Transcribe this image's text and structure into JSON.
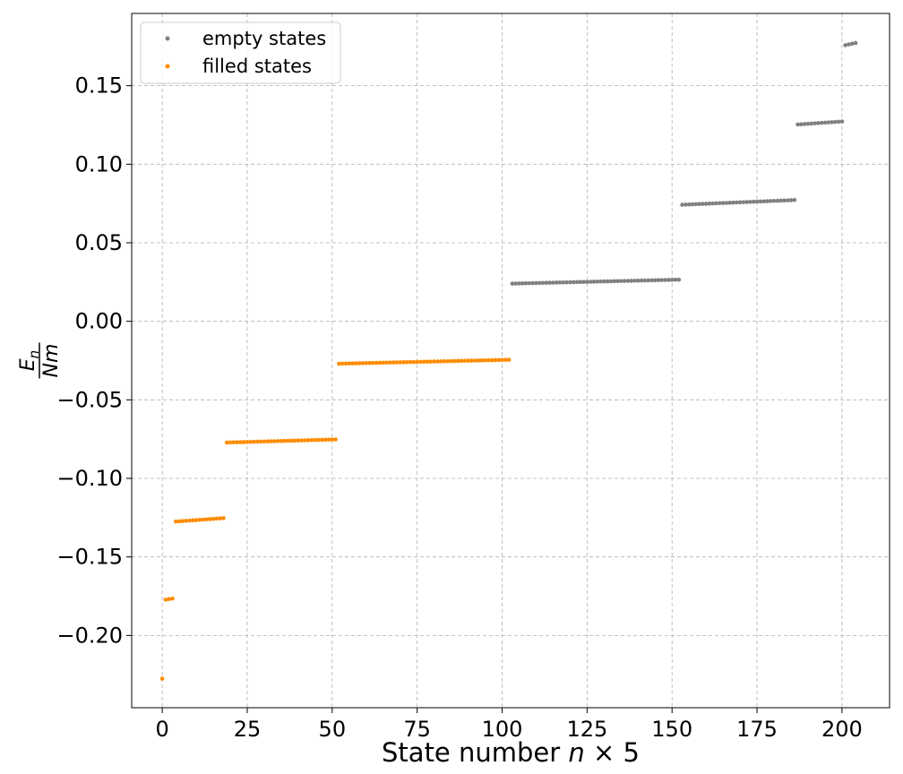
{
  "chart_data": {
    "type": "scatter",
    "title": "",
    "xlabel": "State number n × 5",
    "xlabel_parts": {
      "prefix": "State number ",
      "var": "n",
      "suffix": " × 5"
    },
    "ylabel_parts": {
      "numerator": "E",
      "subscript": "n",
      "denominator": "Nm"
    },
    "xlim": [
      -9,
      214
    ],
    "ylim": [
      -0.246,
      0.196
    ],
    "xticks": [
      0,
      25,
      50,
      75,
      100,
      125,
      150,
      175,
      200
    ],
    "yticks": [
      -0.2,
      -0.15,
      -0.1,
      -0.05,
      0.0,
      0.05,
      0.1,
      0.15
    ],
    "ytick_labels": [
      "−0.20",
      "−0.15",
      "−0.10",
      "−0.05",
      "0.00",
      "0.05",
      "0.10",
      "0.15"
    ],
    "grid": true,
    "legend_position": "top-left",
    "series": [
      {
        "name": "filled states",
        "color": "#ff8c00",
        "bands": [
          {
            "x_start": 0,
            "x_end": 0,
            "y_start": -0.2275,
            "y_end": -0.2275
          },
          {
            "x_start": 1,
            "x_end": 3,
            "y_start": -0.1772,
            "y_end": -0.1765
          },
          {
            "x_start": 4,
            "x_end": 18,
            "y_start": -0.1275,
            "y_end": -0.1253
          },
          {
            "x_start": 19,
            "x_end": 51,
            "y_start": -0.0772,
            "y_end": -0.0752
          },
          {
            "x_start": 52,
            "x_end": 102,
            "y_start": -0.027,
            "y_end": -0.0245
          }
        ]
      },
      {
        "name": "empty states",
        "color": "#808080",
        "bands": [
          {
            "x_start": 103,
            "x_end": 152,
            "y_start": 0.024,
            "y_end": 0.0265
          },
          {
            "x_start": 153,
            "x_end": 186,
            "y_start": 0.0742,
            "y_end": 0.0772
          },
          {
            "x_start": 187,
            "x_end": 200,
            "y_start": 0.1253,
            "y_end": 0.1272
          },
          {
            "x_start": 201,
            "x_end": 204,
            "y_start": 0.1758,
            "y_end": 0.1772
          }
        ]
      }
    ],
    "legend_order": [
      "empty states",
      "filled states"
    ]
  }
}
